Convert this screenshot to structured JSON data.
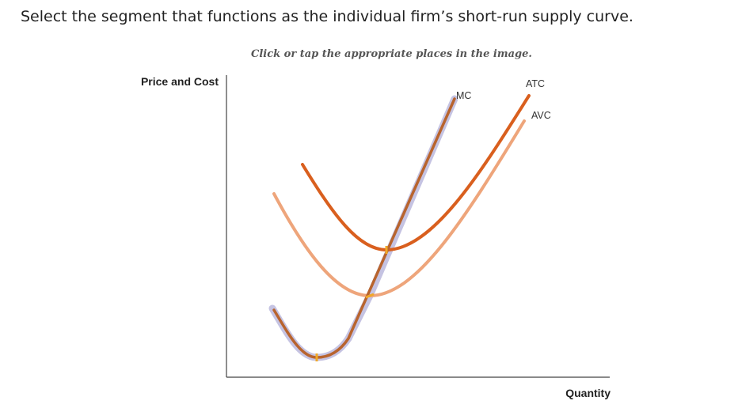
{
  "question": {
    "text": "Select the segment that functions as the individual firm’s short-run supply curve."
  },
  "instruction": {
    "text": "Click or tap the appropriate places in the image."
  },
  "graph": {
    "y_axis_label": "Price and Cost",
    "x_axis_label": "Quantity",
    "curves": [
      {
        "name": "MC",
        "label": "MC",
        "color": "#d95f1e"
      },
      {
        "name": "ATC",
        "label": "ATC",
        "color": "#d95f1e"
      },
      {
        "name": "AVC",
        "label": "AVC",
        "color": "#eea57b"
      }
    ],
    "highlight_color": "#c5c3e2",
    "point_color": "#f0a828"
  }
}
